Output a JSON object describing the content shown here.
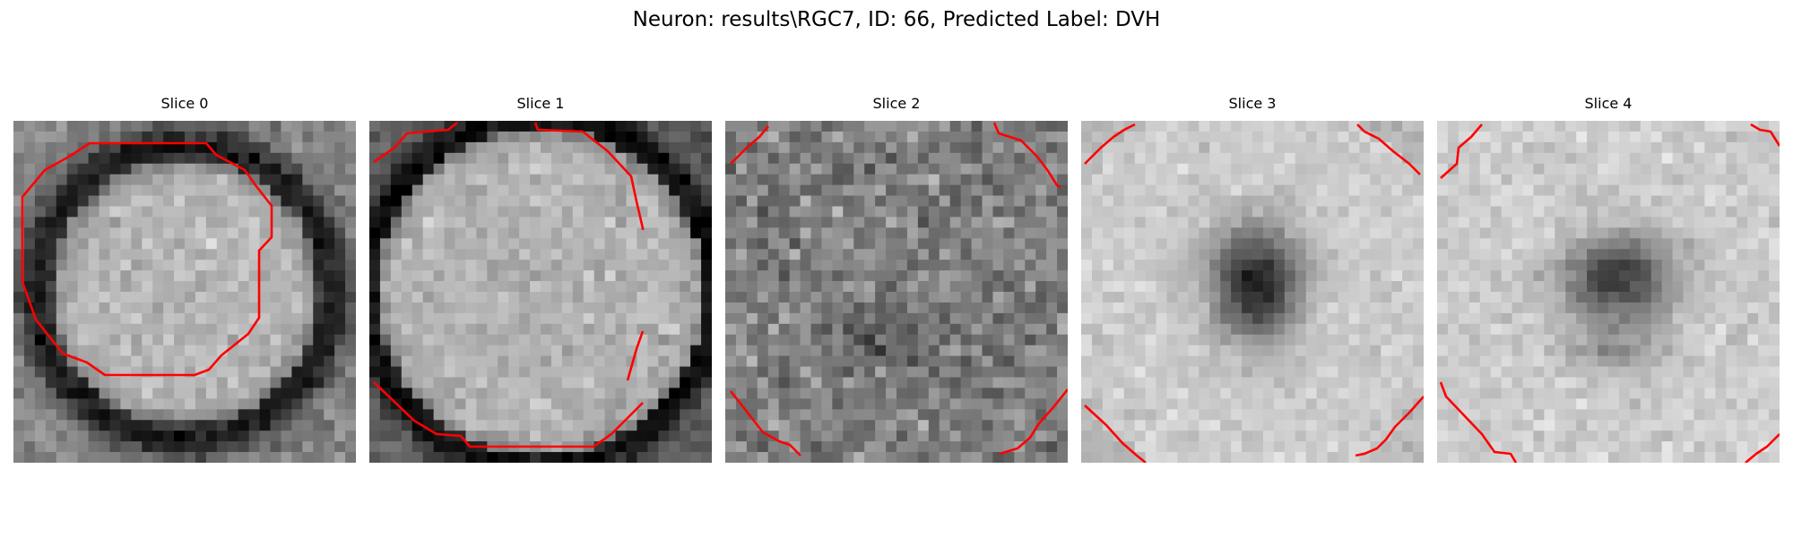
{
  "figure": {
    "title": "Neuron: results\\RGC7, ID: 66, Predicted Label: DVH"
  },
  "colors": {
    "background": "#ffffff",
    "contour": "#ff0000",
    "colormap": "grayscale"
  },
  "grid": {
    "cells_per_side": 32
  },
  "panels": [
    {
      "id": 0,
      "title": "Slice 0",
      "pattern": "bright-disc"
    },
    {
      "id": 1,
      "title": "Slice 1",
      "pattern": "large-bright-disc"
    },
    {
      "id": 2,
      "title": "Slice 2",
      "pattern": "noisy-mid"
    },
    {
      "id": 3,
      "title": "Slice 3",
      "pattern": "dark-core"
    },
    {
      "id": 4,
      "title": "Slice 4",
      "pattern": "dark-core-diffuse"
    }
  ]
}
